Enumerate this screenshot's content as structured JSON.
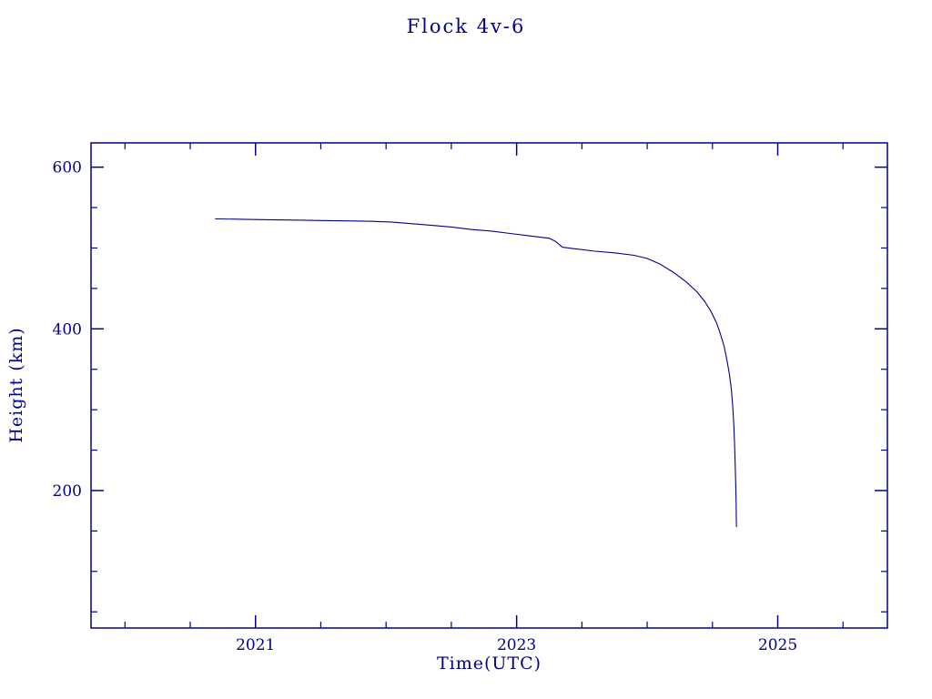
{
  "colors": {
    "line": "#00008b",
    "text": "#00008b",
    "frame": "#00008b",
    "background": "#ffffff"
  },
  "chart_data": {
    "type": "line",
    "title": "Flock 4v-6",
    "xlabel": "Time(UTC)",
    "ylabel": "Height (km)",
    "xlim": [
      2019.74,
      2025.84
    ],
    "ylim": [
      30,
      630
    ],
    "x_ticks": [
      2021,
      2023,
      2025
    ],
    "x_tick_labels": [
      "2021",
      "2023",
      "2025"
    ],
    "y_ticks": [
      200,
      400,
      600
    ],
    "y_tick_labels": [
      "200",
      "400",
      "600"
    ],
    "x_minor_step": 0.5,
    "y_minor_step": 50,
    "grid": false,
    "legend": "none",
    "series": [
      {
        "name": "Flock 4v-6 height",
        "points": [
          [
            2020.69,
            536
          ],
          [
            2020.9,
            535.5
          ],
          [
            2021.1,
            535
          ],
          [
            2021.3,
            534.5
          ],
          [
            2021.5,
            534
          ],
          [
            2021.7,
            533.5
          ],
          [
            2021.9,
            533
          ],
          [
            2022.05,
            532
          ],
          [
            2022.2,
            530
          ],
          [
            2022.35,
            528
          ],
          [
            2022.5,
            526
          ],
          [
            2022.65,
            523
          ],
          [
            2022.8,
            521
          ],
          [
            2022.95,
            518
          ],
          [
            2023.1,
            515
          ],
          [
            2023.25,
            512
          ],
          [
            2023.3,
            508
          ],
          [
            2023.35,
            501
          ],
          [
            2023.45,
            499
          ],
          [
            2023.6,
            496
          ],
          [
            2023.75,
            494
          ],
          [
            2023.9,
            491
          ],
          [
            2024.0,
            487
          ],
          [
            2024.1,
            480
          ],
          [
            2024.2,
            470
          ],
          [
            2024.3,
            458
          ],
          [
            2024.38,
            446
          ],
          [
            2024.44,
            434
          ],
          [
            2024.49,
            421
          ],
          [
            2024.53,
            408
          ],
          [
            2024.56,
            394
          ],
          [
            2024.59,
            378
          ],
          [
            2024.61,
            362
          ],
          [
            2024.63,
            344
          ],
          [
            2024.645,
            325
          ],
          [
            2024.655,
            305
          ],
          [
            2024.663,
            283
          ],
          [
            2024.669,
            260
          ],
          [
            2024.674,
            235
          ],
          [
            2024.678,
            210
          ],
          [
            2024.681,
            185
          ],
          [
            2024.683,
            165
          ],
          [
            2024.684,
            155
          ]
        ]
      }
    ]
  }
}
